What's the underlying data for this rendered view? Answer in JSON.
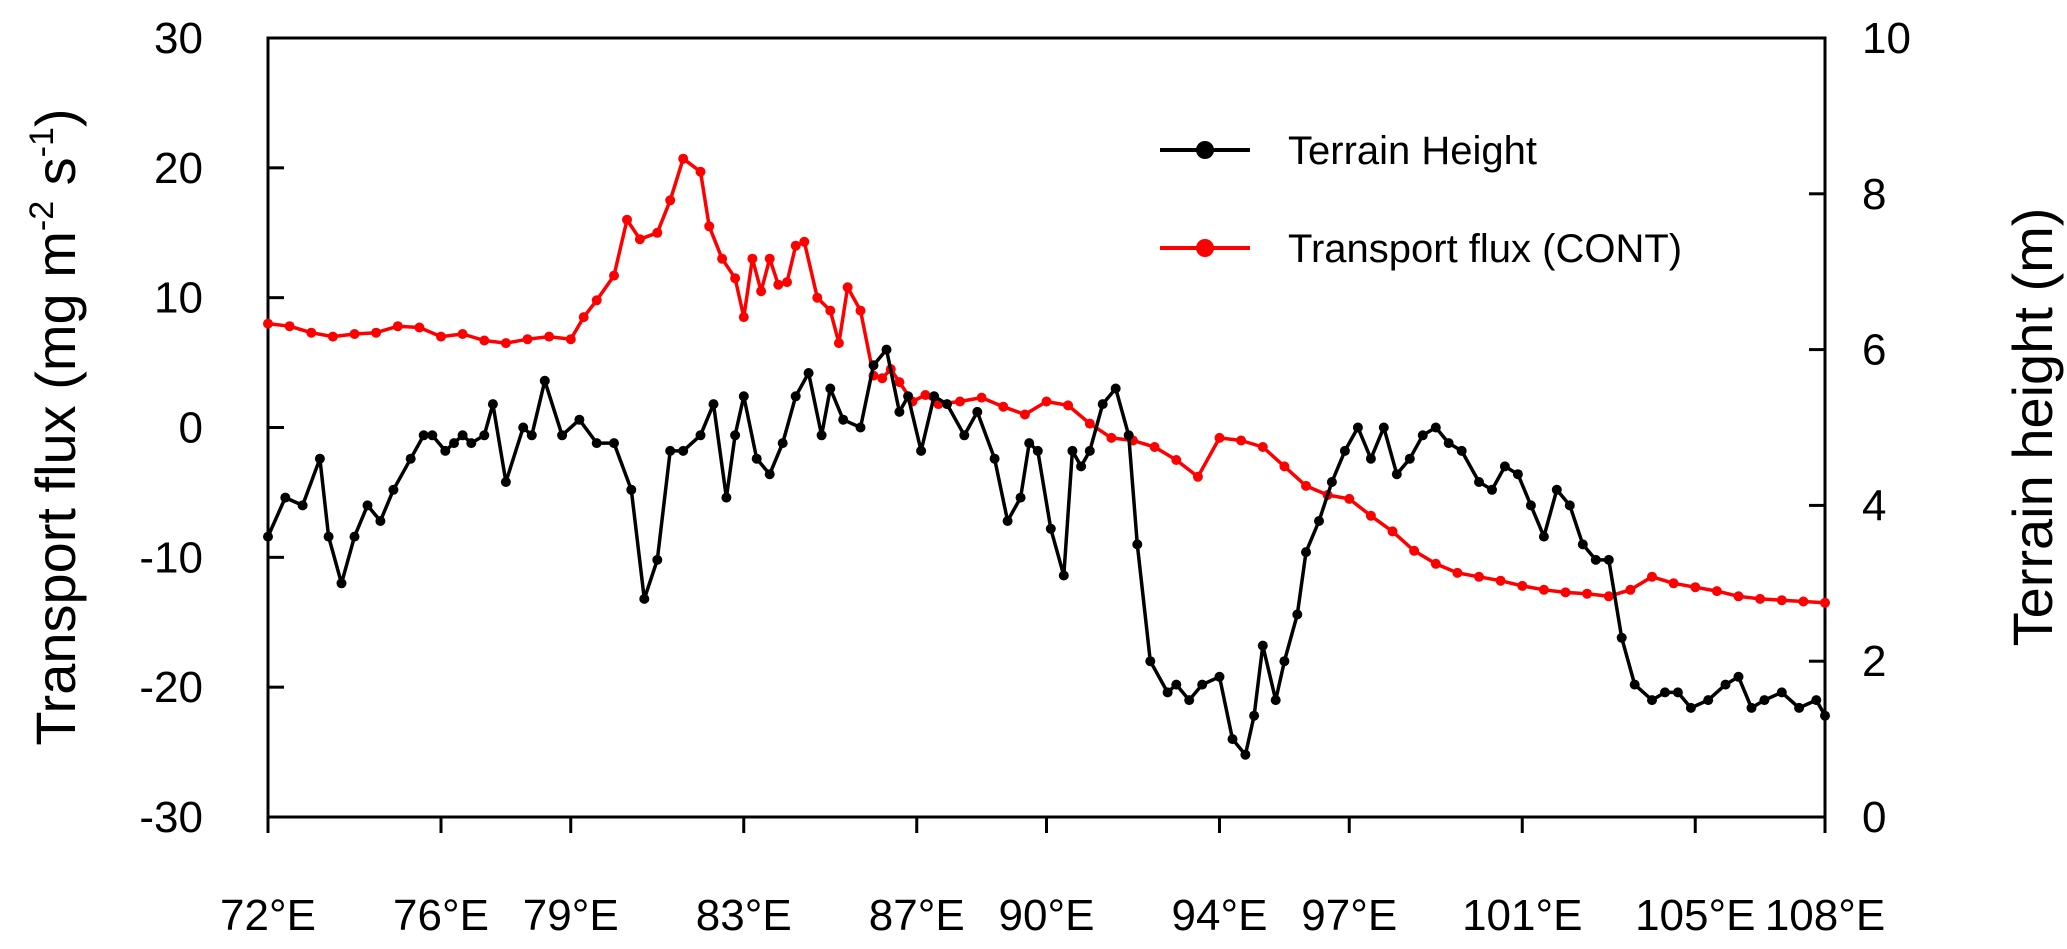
{
  "chart_data": {
    "type": "line",
    "x_tick_labels": [
      "72°E",
      "76°E",
      "79°E",
      "83°E",
      "87°E",
      "90°E",
      "94°E",
      "97°E",
      "101°E",
      "105°E",
      "108°E"
    ],
    "x_ticks": [
      72,
      76,
      79,
      83,
      87,
      90,
      94,
      97,
      101,
      105,
      108
    ],
    "xlim": [
      72,
      108
    ],
    "y_left": {
      "label": "Transport flux (mg m",
      "sup1": "-2",
      "mid": " s",
      "sup2": "-1",
      "end": ")",
      "lim": [
        -30,
        30
      ],
      "ticks": [
        -30,
        -20,
        -10,
        0,
        10,
        20,
        30
      ],
      "tick_labels": [
        "-30",
        "-20",
        "-10",
        "0",
        "10",
        "20",
        "30"
      ]
    },
    "y_right": {
      "label": "Terrain height (m)",
      "lim": [
        0,
        10
      ],
      "ticks": [
        0,
        2,
        4,
        6,
        8,
        10
      ],
      "tick_labels": [
        "0",
        "2",
        "4",
        "6",
        "8",
        "10"
      ]
    },
    "legend": {
      "placement": "top-right",
      "entries": [
        "Terrain Height",
        "Transport flux (CONT)"
      ]
    },
    "grid": false,
    "series": [
      {
        "name": "Terrain Height",
        "axis": "right",
        "color": "#000000",
        "x": [
          72.0,
          72.4,
          72.8,
          73.2,
          73.4,
          73.7,
          74.0,
          74.3,
          74.6,
          74.9,
          75.3,
          75.6,
          75.8,
          76.1,
          76.3,
          76.5,
          76.7,
          77.0,
          77.2,
          77.5,
          77.9,
          78.1,
          78.4,
          78.8,
          79.2,
          79.6,
          80.0,
          80.4,
          80.7,
          81.0,
          81.3,
          81.6,
          82.0,
          82.3,
          82.6,
          82.8,
          83.0,
          83.3,
          83.6,
          83.9,
          84.2,
          84.5,
          84.8,
          85.0,
          85.3,
          85.7,
          86.0,
          86.3,
          86.6,
          86.8,
          87.1,
          87.4,
          87.7,
          88.1,
          88.4,
          88.8,
          89.1,
          89.4,
          89.6,
          89.8,
          90.1,
          90.4,
          90.6,
          90.8,
          91.0,
          91.3,
          91.6,
          91.9,
          92.1,
          92.4,
          92.8,
          93.0,
          93.3,
          93.6,
          94.0,
          94.3,
          94.6,
          94.8,
          95.0,
          95.3,
          95.5,
          95.8,
          96.0,
          96.3,
          96.6,
          96.9,
          97.2,
          97.5,
          97.8,
          98.1,
          98.4,
          98.7,
          99.0,
          99.3,
          99.6,
          100.0,
          100.3,
          100.6,
          100.9,
          101.2,
          101.5,
          101.8,
          102.1,
          102.4,
          102.7,
          103.0,
          103.3,
          103.6,
          104.0,
          104.3,
          104.6,
          104.9,
          105.3,
          105.7,
          106.0,
          106.3,
          106.6,
          107.0,
          107.4,
          107.8,
          108.0
        ],
        "y": [
          3.6,
          4.1,
          4.0,
          4.6,
          3.6,
          3.0,
          3.6,
          4.0,
          3.8,
          4.2,
          4.6,
          4.9,
          4.9,
          4.7,
          4.8,
          4.9,
          4.8,
          4.9,
          5.3,
          4.3,
          5.0,
          4.9,
          5.6,
          4.9,
          5.1,
          4.8,
          4.8,
          4.2,
          2.8,
          3.3,
          4.7,
          4.7,
          4.9,
          5.3,
          4.1,
          4.9,
          5.4,
          4.6,
          4.4,
          4.8,
          5.4,
          5.7,
          4.9,
          5.5,
          5.1,
          5.0,
          5.8,
          6.0,
          5.2,
          5.4,
          4.7,
          5.4,
          5.3,
          4.9,
          5.2,
          4.6,
          3.8,
          4.1,
          4.8,
          4.7,
          3.7,
          3.1,
          4.7,
          4.5,
          4.7,
          5.3,
          5.5,
          4.9,
          3.5,
          2.0,
          1.6,
          1.7,
          1.5,
          1.7,
          1.8,
          1.0,
          0.8,
          1.3,
          2.2,
          1.5,
          2.0,
          2.6,
          3.4,
          3.8,
          4.3,
          4.7,
          5.0,
          4.6,
          5.0,
          4.4,
          4.6,
          4.9,
          5.0,
          4.8,
          4.7,
          4.3,
          4.2,
          4.5,
          4.4,
          4.0,
          3.6,
          4.2,
          4.0,
          3.5,
          3.3,
          3.3,
          2.3,
          1.7,
          1.5,
          1.6,
          1.6,
          1.4,
          1.5,
          1.7,
          1.8,
          1.4,
          1.5,
          1.6,
          1.4,
          1.5,
          1.3
        ]
      },
      {
        "name": "Transport flux (CONT)",
        "axis": "left",
        "color": "#ff0000",
        "x": [
          72.0,
          72.5,
          73.0,
          73.5,
          74.0,
          74.5,
          75.0,
          75.5,
          76.0,
          76.5,
          77.0,
          77.5,
          78.0,
          78.5,
          79.0,
          79.3,
          79.6,
          80.0,
          80.3,
          80.6,
          81.0,
          81.3,
          81.6,
          82.0,
          82.2,
          82.5,
          82.8,
          83.0,
          83.2,
          83.4,
          83.6,
          83.8,
          84.0,
          84.2,
          84.4,
          84.7,
          85.0,
          85.2,
          85.4,
          85.7,
          86.0,
          86.2,
          86.4,
          86.6,
          86.9,
          87.2,
          87.5,
          88.0,
          88.5,
          89.0,
          89.5,
          90.0,
          90.5,
          91.0,
          91.5,
          92.0,
          92.5,
          93.0,
          93.5,
          94.0,
          94.5,
          95.0,
          95.5,
          96.0,
          96.5,
          97.0,
          97.5,
          98.0,
          98.5,
          99.0,
          99.5,
          100.0,
          100.5,
          101.0,
          101.5,
          102.0,
          102.5,
          103.0,
          103.5,
          104.0,
          104.5,
          105.0,
          105.5,
          106.0,
          106.5,
          107.0,
          107.5,
          108.0
        ],
        "y": [
          8.0,
          7.8,
          7.3,
          7.0,
          7.2,
          7.3,
          7.8,
          7.7,
          7.0,
          7.2,
          6.7,
          6.5,
          6.8,
          7.0,
          6.8,
          8.5,
          9.8,
          11.7,
          16.0,
          14.5,
          15.0,
          17.5,
          20.7,
          19.7,
          15.5,
          13.0,
          11.5,
          8.5,
          13.0,
          10.5,
          13.0,
          11.0,
          11.2,
          14.0,
          14.3,
          10.0,
          9.0,
          6.5,
          10.8,
          9.0,
          4.0,
          3.8,
          4.5,
          3.5,
          2.0,
          2.5,
          1.8,
          2.0,
          2.3,
          1.6,
          1.0,
          2.0,
          1.7,
          0.3,
          -0.8,
          -1.0,
          -1.5,
          -2.5,
          -3.8,
          -0.8,
          -1.0,
          -1.5,
          -3.0,
          -4.5,
          -5.2,
          -5.5,
          -6.8,
          -8.0,
          -9.5,
          -10.5,
          -11.2,
          -11.5,
          -11.8,
          -12.2,
          -12.5,
          -12.7,
          -12.8,
          -13.0,
          -12.5,
          -11.5,
          -12.0,
          -12.3,
          -12.6,
          -13.0,
          -13.2,
          -13.3,
          -13.4,
          -13.5
        ]
      }
    ]
  }
}
